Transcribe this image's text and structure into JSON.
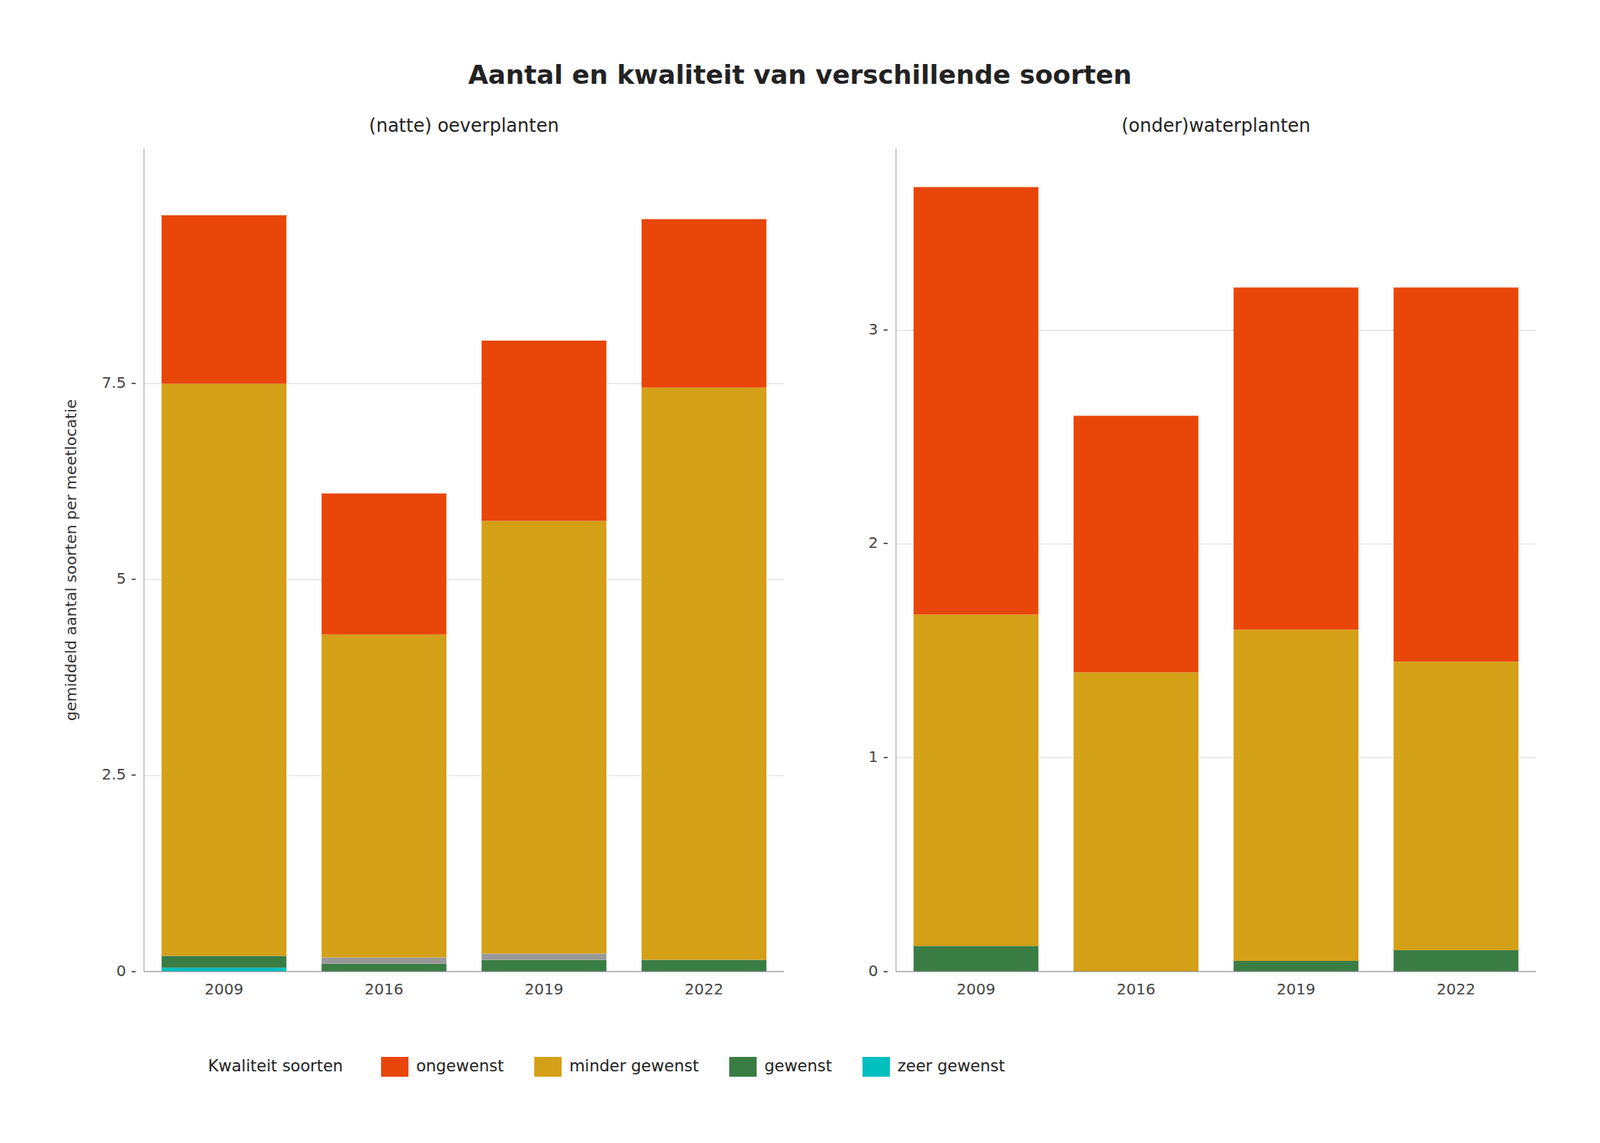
{
  "title": "Aantal en kwaliteit van verschillende soorten",
  "legend_title": "Kwaliteit soorten",
  "legend": "bottom",
  "chart_data": [
    {
      "type": "bar",
      "stacked": true,
      "grid": true,
      "title": "(natte) oeverplanten",
      "ylabel": "gemiddeld aantal soorten per meetlocatie",
      "categories": [
        "2009",
        "2016",
        "2019",
        "2022"
      ],
      "series": [
        {
          "name": "zeer gewenst",
          "color": "#00BFBF",
          "values": [
            0.05,
            0.0,
            0.0,
            0.0
          ]
        },
        {
          "name": "gewenst",
          "color": "#3A7D44",
          "values": [
            0.15,
            0.1,
            0.15,
            0.15
          ]
        },
        {
          "color": "#999999",
          "values": [
            0.0,
            0.08,
            0.08,
            0.0
          ]
        },
        {
          "name": "minder gewenst",
          "color": "#D4A017",
          "values": [
            7.3,
            4.12,
            5.52,
            7.3
          ]
        },
        {
          "name": "ongewenst",
          "color": "#E8460A",
          "values": [
            2.15,
            1.8,
            2.3,
            2.15
          ]
        }
      ],
      "ylim": [
        0,
        10.5
      ],
      "yticks": [
        {
          "value": 0.0,
          "label": "0 -"
        },
        {
          "value": 2.5,
          "label": "2.5 -"
        },
        {
          "value": 5.0,
          "label": "5 -"
        },
        {
          "value": 7.5,
          "label": "7.5 -"
        }
      ]
    },
    {
      "type": "bar",
      "stacked": true,
      "grid": true,
      "title": "(onder)waterplanten",
      "categories": [
        "2009",
        "2016",
        "2019",
        "2022"
      ],
      "series": [
        {
          "name": "zeer gewenst",
          "color": "#00BFBF",
          "values": [
            0.0,
            0.0,
            0.0,
            0.0
          ]
        },
        {
          "name": "gewenst",
          "color": "#3A7D44",
          "values": [
            0.12,
            0.0,
            0.05,
            0.1
          ]
        },
        {
          "color": "#999999",
          "values": [
            0.0,
            0.0,
            0.0,
            0.0
          ]
        },
        {
          "name": "minder gewenst",
          "color": "#D4A017",
          "values": [
            1.55,
            1.4,
            1.55,
            1.35
          ]
        },
        {
          "name": "ongewenst",
          "color": "#E8460A",
          "values": [
            2.0,
            1.2,
            1.6,
            1.75
          ]
        }
      ],
      "ylim": [
        0,
        3.85
      ],
      "yticks": [
        {
          "value": 0.0,
          "label": "0 -"
        },
        {
          "value": 1.0,
          "label": "1 -"
        },
        {
          "value": 2.0,
          "label": "2 -"
        },
        {
          "value": 3.0,
          "label": "3 -"
        }
      ]
    }
  ]
}
